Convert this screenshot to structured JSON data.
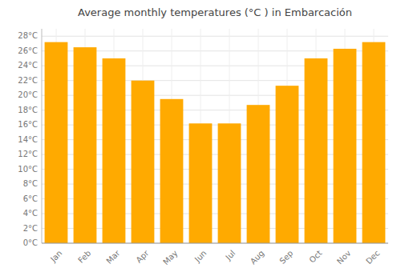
{
  "chart_data": {
    "type": "bar",
    "title": "Average monthly temperatures (°C ) in Embarcación",
    "categories": [
      "Jan",
      "Feb",
      "Mar",
      "Apr",
      "May",
      "Jun",
      "Jul",
      "Aug",
      "Sep",
      "Oct",
      "Nov",
      "Dec"
    ],
    "values": [
      27.2,
      26.5,
      25.0,
      22.0,
      19.5,
      16.2,
      16.2,
      18.7,
      21.3,
      25.0,
      26.3,
      27.2
    ],
    "color": "#FFAA00",
    "ylim": [
      0,
      29
    ],
    "yticks": [
      {
        "value": 0,
        "label": "0°C"
      },
      {
        "value": 2,
        "label": "2°C"
      },
      {
        "value": 4,
        "label": "4°C"
      },
      {
        "value": 6,
        "label": "6°C"
      },
      {
        "value": 8,
        "label": "8°C"
      },
      {
        "value": 10,
        "label": "10°C"
      },
      {
        "value": 12,
        "label": "12°C"
      },
      {
        "value": 14,
        "label": "14°C"
      },
      {
        "value": 16,
        "label": "16°C"
      },
      {
        "value": 18,
        "label": "18°C"
      },
      {
        "value": 20,
        "label": "20°C"
      },
      {
        "value": 22,
        "label": "22°C"
      },
      {
        "value": 24,
        "label": "24°C"
      },
      {
        "value": 26,
        "label": "26°C"
      },
      {
        "value": 28,
        "label": "28°C"
      }
    ],
    "grid": true
  }
}
